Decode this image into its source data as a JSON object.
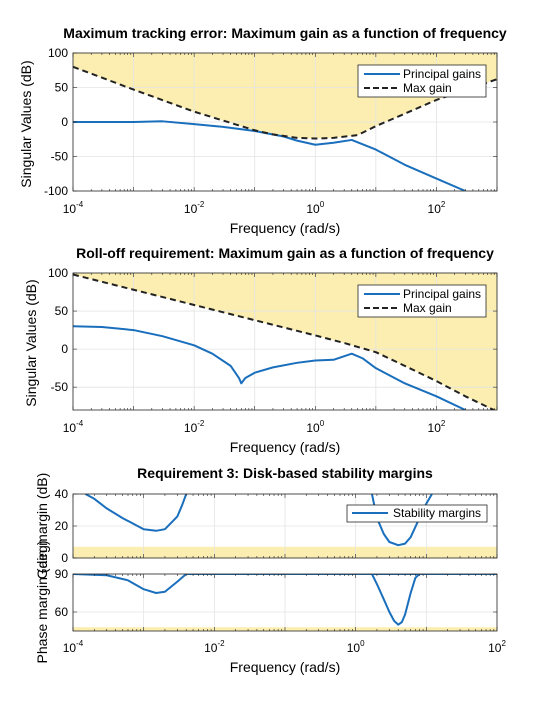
{
  "colors": {
    "region": "#fbeeb0",
    "principal": "#1a6fbd",
    "maxgain": "#222222",
    "grid": "#e4e4e4",
    "axes": "#262626"
  },
  "chart_data": [
    {
      "type": "line",
      "title": "Maximum tracking error: Maximum gain as a function of frequency",
      "xlabel": "Frequency (rad/s)",
      "ylabel": "Singular Values (dB)",
      "xscale": "log",
      "xlim": [
        0.0001,
        1000
      ],
      "ylim": [
        -100,
        100
      ],
      "xticks": [
        0.0001,
        0.01,
        1,
        100
      ],
      "xtick_labels": [
        {
          "b": "10",
          "e": "-4"
        },
        {
          "b": "10",
          "e": "-2"
        },
        {
          "b": "10",
          "e": "0"
        },
        {
          "b": "10",
          "e": "2"
        }
      ],
      "yticks": [
        -100,
        -50,
        0,
        50,
        100
      ],
      "ytick_labels": [
        "-100",
        "-50",
        "0",
        "50",
        "100"
      ],
      "grid": true,
      "legend": {
        "position": "top-right",
        "entries": [
          "Principal gains",
          "Max gain"
        ]
      },
      "shaded_region": "above max gain",
      "series": [
        {
          "name": "Principal gains",
          "style": "solid",
          "x": [
            0.0001,
            0.0003,
            0.001,
            0.003,
            0.01,
            0.03,
            0.1,
            0.3,
            0.5,
            1,
            2,
            4,
            10,
            30,
            100,
            300
          ],
          "y": [
            0,
            0,
            0,
            1,
            -3,
            -7,
            -13,
            -21,
            -27,
            -33,
            -30,
            -26,
            -40,
            -62,
            -82,
            -100
          ]
        },
        {
          "name": "Max gain",
          "style": "dashed",
          "x": [
            0.0001,
            0.001,
            0.01,
            0.1,
            0.2,
            0.5,
            1,
            2,
            5,
            10,
            30,
            100,
            1000
          ],
          "y": [
            80,
            47,
            15,
            -12,
            -18,
            -23,
            -24,
            -23,
            -19,
            -6,
            12,
            32,
            62
          ]
        }
      ]
    },
    {
      "type": "line",
      "title": "Roll-off requirement: Maximum gain as a function of frequency",
      "xlabel": "Frequency (rad/s)",
      "ylabel": "Singular Values (dB)",
      "xscale": "log",
      "xlim": [
        0.0001,
        1000
      ],
      "ylim": [
        -80,
        100
      ],
      "xticks": [
        0.0001,
        0.01,
        1,
        100
      ],
      "xtick_labels": [
        {
          "b": "10",
          "e": "-4"
        },
        {
          "b": "10",
          "e": "-2"
        },
        {
          "b": "10",
          "e": "0"
        },
        {
          "b": "10",
          "e": "2"
        }
      ],
      "yticks": [
        -50,
        0,
        50,
        100
      ],
      "ytick_labels": [
        "-50",
        "0",
        "50",
        "100"
      ],
      "grid": true,
      "legend": {
        "position": "top-right",
        "entries": [
          "Principal gains",
          "Max gain"
        ]
      },
      "shaded_region": "above max gain",
      "series": [
        {
          "name": "Principal gains",
          "style": "solid",
          "x": [
            0.0001,
            0.0003,
            0.001,
            0.003,
            0.01,
            0.02,
            0.04,
            0.055,
            0.06,
            0.07,
            0.1,
            0.2,
            0.5,
            1,
            2,
            4,
            6,
            10,
            30,
            100,
            300
          ],
          "y": [
            30,
            29,
            25,
            17,
            5,
            -6,
            -22,
            -38,
            -45,
            -38,
            -31,
            -24,
            -18,
            -15,
            -14,
            -6,
            -12,
            -25,
            -45,
            -62,
            -80
          ]
        },
        {
          "name": "Max gain",
          "style": "dashed",
          "x": [
            0.0001,
            0.001,
            0.01,
            0.1,
            1,
            3,
            10,
            30,
            100,
            300,
            1000
          ],
          "y": [
            98,
            78,
            58,
            38,
            18,
            8,
            -4,
            -22,
            -42,
            -62,
            -82
          ]
        }
      ]
    },
    {
      "type": "line",
      "title": "Requirement 3: Disk-based stability margins",
      "xlabel": "Frequency (rad/s)",
      "ylabel_top": "Gain margin (dB)",
      "ylabel_bottom": "Phase margin (deg)",
      "xscale": "log",
      "xlim": [
        0.0001,
        100
      ],
      "xticks": [
        0.0001,
        0.01,
        1,
        100
      ],
      "xtick_labels": [
        {
          "b": "10",
          "e": "-4"
        },
        {
          "b": "10",
          "e": "-2"
        },
        {
          "b": "10",
          "e": "0"
        },
        {
          "b": "10",
          "e": "2"
        }
      ],
      "grid": true,
      "legend": {
        "position": "top-right",
        "entries": [
          "Stability margins"
        ]
      },
      "gain_margin": {
        "ylim": [
          0,
          40
        ],
        "yticks": [
          0,
          20,
          40
        ],
        "ytick_labels": [
          "0",
          "20",
          "40"
        ],
        "shaded_below": 7,
        "series": [
          {
            "name": "Stability margins",
            "segment": 1,
            "x": [
              0.00015,
              0.0002,
              0.0003,
              0.0005,
              0.001,
              0.0015,
              0.002,
              0.003,
              0.0035,
              0.004
            ],
            "y": [
              40,
              37,
              31,
              25,
              18,
              17,
              18,
              26,
              33,
              40
            ]
          },
          {
            "name": "Stability margins",
            "segment": 2,
            "x": [
              1.7,
              2,
              2.5,
              3,
              4,
              5,
              6,
              8,
              10,
              12
            ],
            "y": [
              40,
              25,
              15,
              10,
              8,
              9,
              13,
              25,
              34,
              40
            ]
          }
        ]
      },
      "phase_margin": {
        "ylim": [
          45,
          90
        ],
        "yticks": [
          60,
          90
        ],
        "ytick_labels": [
          "60",
          "90"
        ],
        "shaded_below": 48,
        "series": [
          {
            "name": "Stability margins",
            "segment": 1,
            "x": [
              0.0001,
              0.0003,
              0.0006,
              0.001,
              0.0015,
              0.002,
              0.003,
              0.004,
              100
            ],
            "y": [
              90,
              89,
              85,
              78,
              75,
              76,
              84,
              90,
              90
            ]
          },
          {
            "name": "Stability margins",
            "segment": 2,
            "x": [
              1.7,
              2,
              2.5,
              3,
              3.5,
              4,
              4.5,
              5,
              6,
              7,
              8
            ],
            "y": [
              90,
              82,
              70,
              60,
              53,
              50,
              52,
              58,
              75,
              87,
              90
            ]
          }
        ]
      }
    }
  ]
}
